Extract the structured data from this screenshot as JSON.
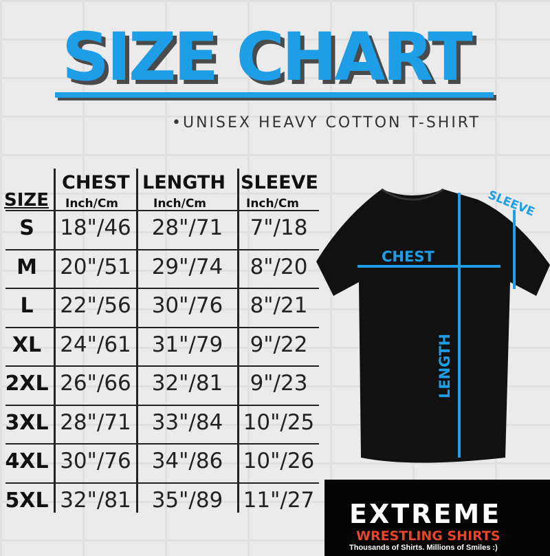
{
  "title": "SIZE CHART",
  "subtitle": "•UNISEX HEAVY COTTON T-SHIRT",
  "table": {
    "headers": [
      {
        "label": "SIZE",
        "unit": ""
      },
      {
        "label": "CHEST",
        "unit": "Inch/Cm"
      },
      {
        "label": "LENGTH",
        "unit": "Inch/Cm"
      },
      {
        "label": "SLEEVE",
        "unit": "Inch/Cm"
      }
    ],
    "rows": [
      [
        "S",
        "18\"/46",
        "28\"/71",
        "7\"/18"
      ],
      [
        "M",
        "20\"/51",
        "29\"/74",
        "8\"/20"
      ],
      [
        "L",
        "22\"/56",
        "30\"/76",
        "8\"/21"
      ],
      [
        "XL",
        "24\"/61",
        "31\"/79",
        "9\"/22"
      ],
      [
        "2XL",
        "26\"/66",
        "32\"/81",
        "9\"/23"
      ],
      [
        "3XL",
        "28\"/71",
        "33\"/84",
        "10\"/25"
      ],
      [
        "4XL",
        "30\"/76",
        "34\"/86",
        "10\"/26"
      ],
      [
        "5XL",
        "32\"/81",
        "35\"/89",
        "11\"/27"
      ]
    ]
  },
  "diagram": {
    "chest": "CHEST",
    "length": "LENGTH",
    "sleeve": "SLEEVE",
    "accent": "#1d9ee6"
  },
  "logo": {
    "line1": "EXTREME",
    "line2": "WRESTLING SHIRTS",
    "tagline": "Thousands of Shirts. Millions of Smiles :)"
  }
}
